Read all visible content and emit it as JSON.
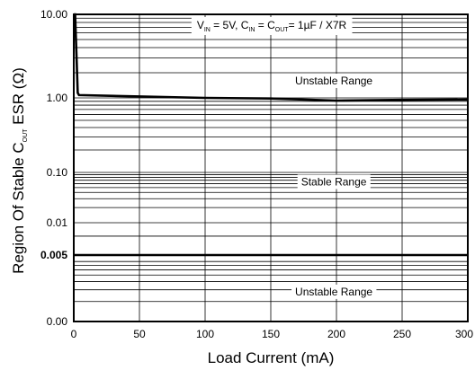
{
  "chart_data": {
    "type": "line",
    "xlabel": "Load Current (mA)",
    "ylabel": {
      "pre": "Region Of Stable C",
      "sub": "OUT",
      "post": " ESR (Ω)"
    },
    "conditions": [
      {
        "t": "V",
        "sub": false
      },
      {
        "t": "IN",
        "sub": true
      },
      {
        "t": " = 5V, C",
        "sub": false
      },
      {
        "t": "IN",
        "sub": true
      },
      {
        "t": " = C",
        "sub": false
      },
      {
        "t": "OUT",
        "sub": true
      },
      {
        "t": "= 1µF / X7R",
        "sub": false
      }
    ],
    "xlim": [
      0,
      300
    ],
    "x_ticks": [
      0,
      50,
      100,
      150,
      200,
      250,
      300
    ],
    "y_tick_labels": [
      "10.00",
      "1.00",
      "0.10",
      "0.01",
      "0.005",
      "0.00"
    ],
    "y_tick_values": [
      10,
      1,
      0.1,
      0.01,
      0.005,
      0
    ],
    "grid": true,
    "series": [
      {
        "role": "upper boundary",
        "points": [
          [
            0,
            10
          ],
          [
            1,
            10
          ],
          [
            3,
            1.15
          ],
          [
            4,
            1.08
          ],
          [
            50,
            1.04
          ],
          [
            100,
            1.0
          ],
          [
            150,
            0.98
          ],
          [
            200,
            0.92
          ],
          [
            250,
            0.94
          ],
          [
            300,
            0.95
          ]
        ]
      },
      {
        "role": "lower boundary",
        "points": [
          [
            0,
            0.005
          ],
          [
            300,
            0.005
          ]
        ]
      }
    ],
    "annotations": [
      {
        "text": "Unstable Range",
        "x": 198,
        "y": 1.6
      },
      {
        "text": "Stable Range",
        "x": 198,
        "y": 0.065
      },
      {
        "text": "Unstable Range",
        "x": 198,
        "y": 0.0014
      }
    ]
  }
}
